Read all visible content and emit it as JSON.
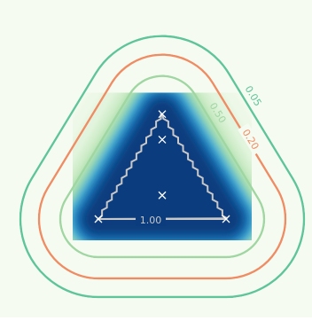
{
  "chart_data": {
    "type": "heatmap",
    "title": "",
    "xlabel": "",
    "ylabel": "",
    "grid": false,
    "legend": "none",
    "colormap": "GnBu",
    "triangle_vertices": [
      [
        0.0,
        1.15
      ],
      [
        -0.7,
        0.0
      ],
      [
        0.7,
        0.0
      ]
    ],
    "sample_points": [
      [
        0.0,
        1.15
      ],
      [
        0.0,
        0.87
      ],
      [
        0.0,
        0.26
      ],
      [
        -0.7,
        0.0
      ],
      [
        0.7,
        0.0
      ]
    ],
    "contours": [
      {
        "level": 1.0,
        "label": "1.00",
        "color": "#c8c8c8"
      },
      {
        "level": 0.5,
        "label": "0.50",
        "color": "#9fd6a2"
      },
      {
        "level": 0.2,
        "label": "0.20",
        "color": "#f08c64"
      },
      {
        "level": 0.05,
        "label": "0.05",
        "color": "#5ec49a"
      }
    ],
    "colors": {
      "background": "#f5fbf0",
      "core": "#0b3c7e",
      "mid": "#4eb3d3",
      "outer": "#ccebc5",
      "marker": "#ffffff"
    }
  }
}
